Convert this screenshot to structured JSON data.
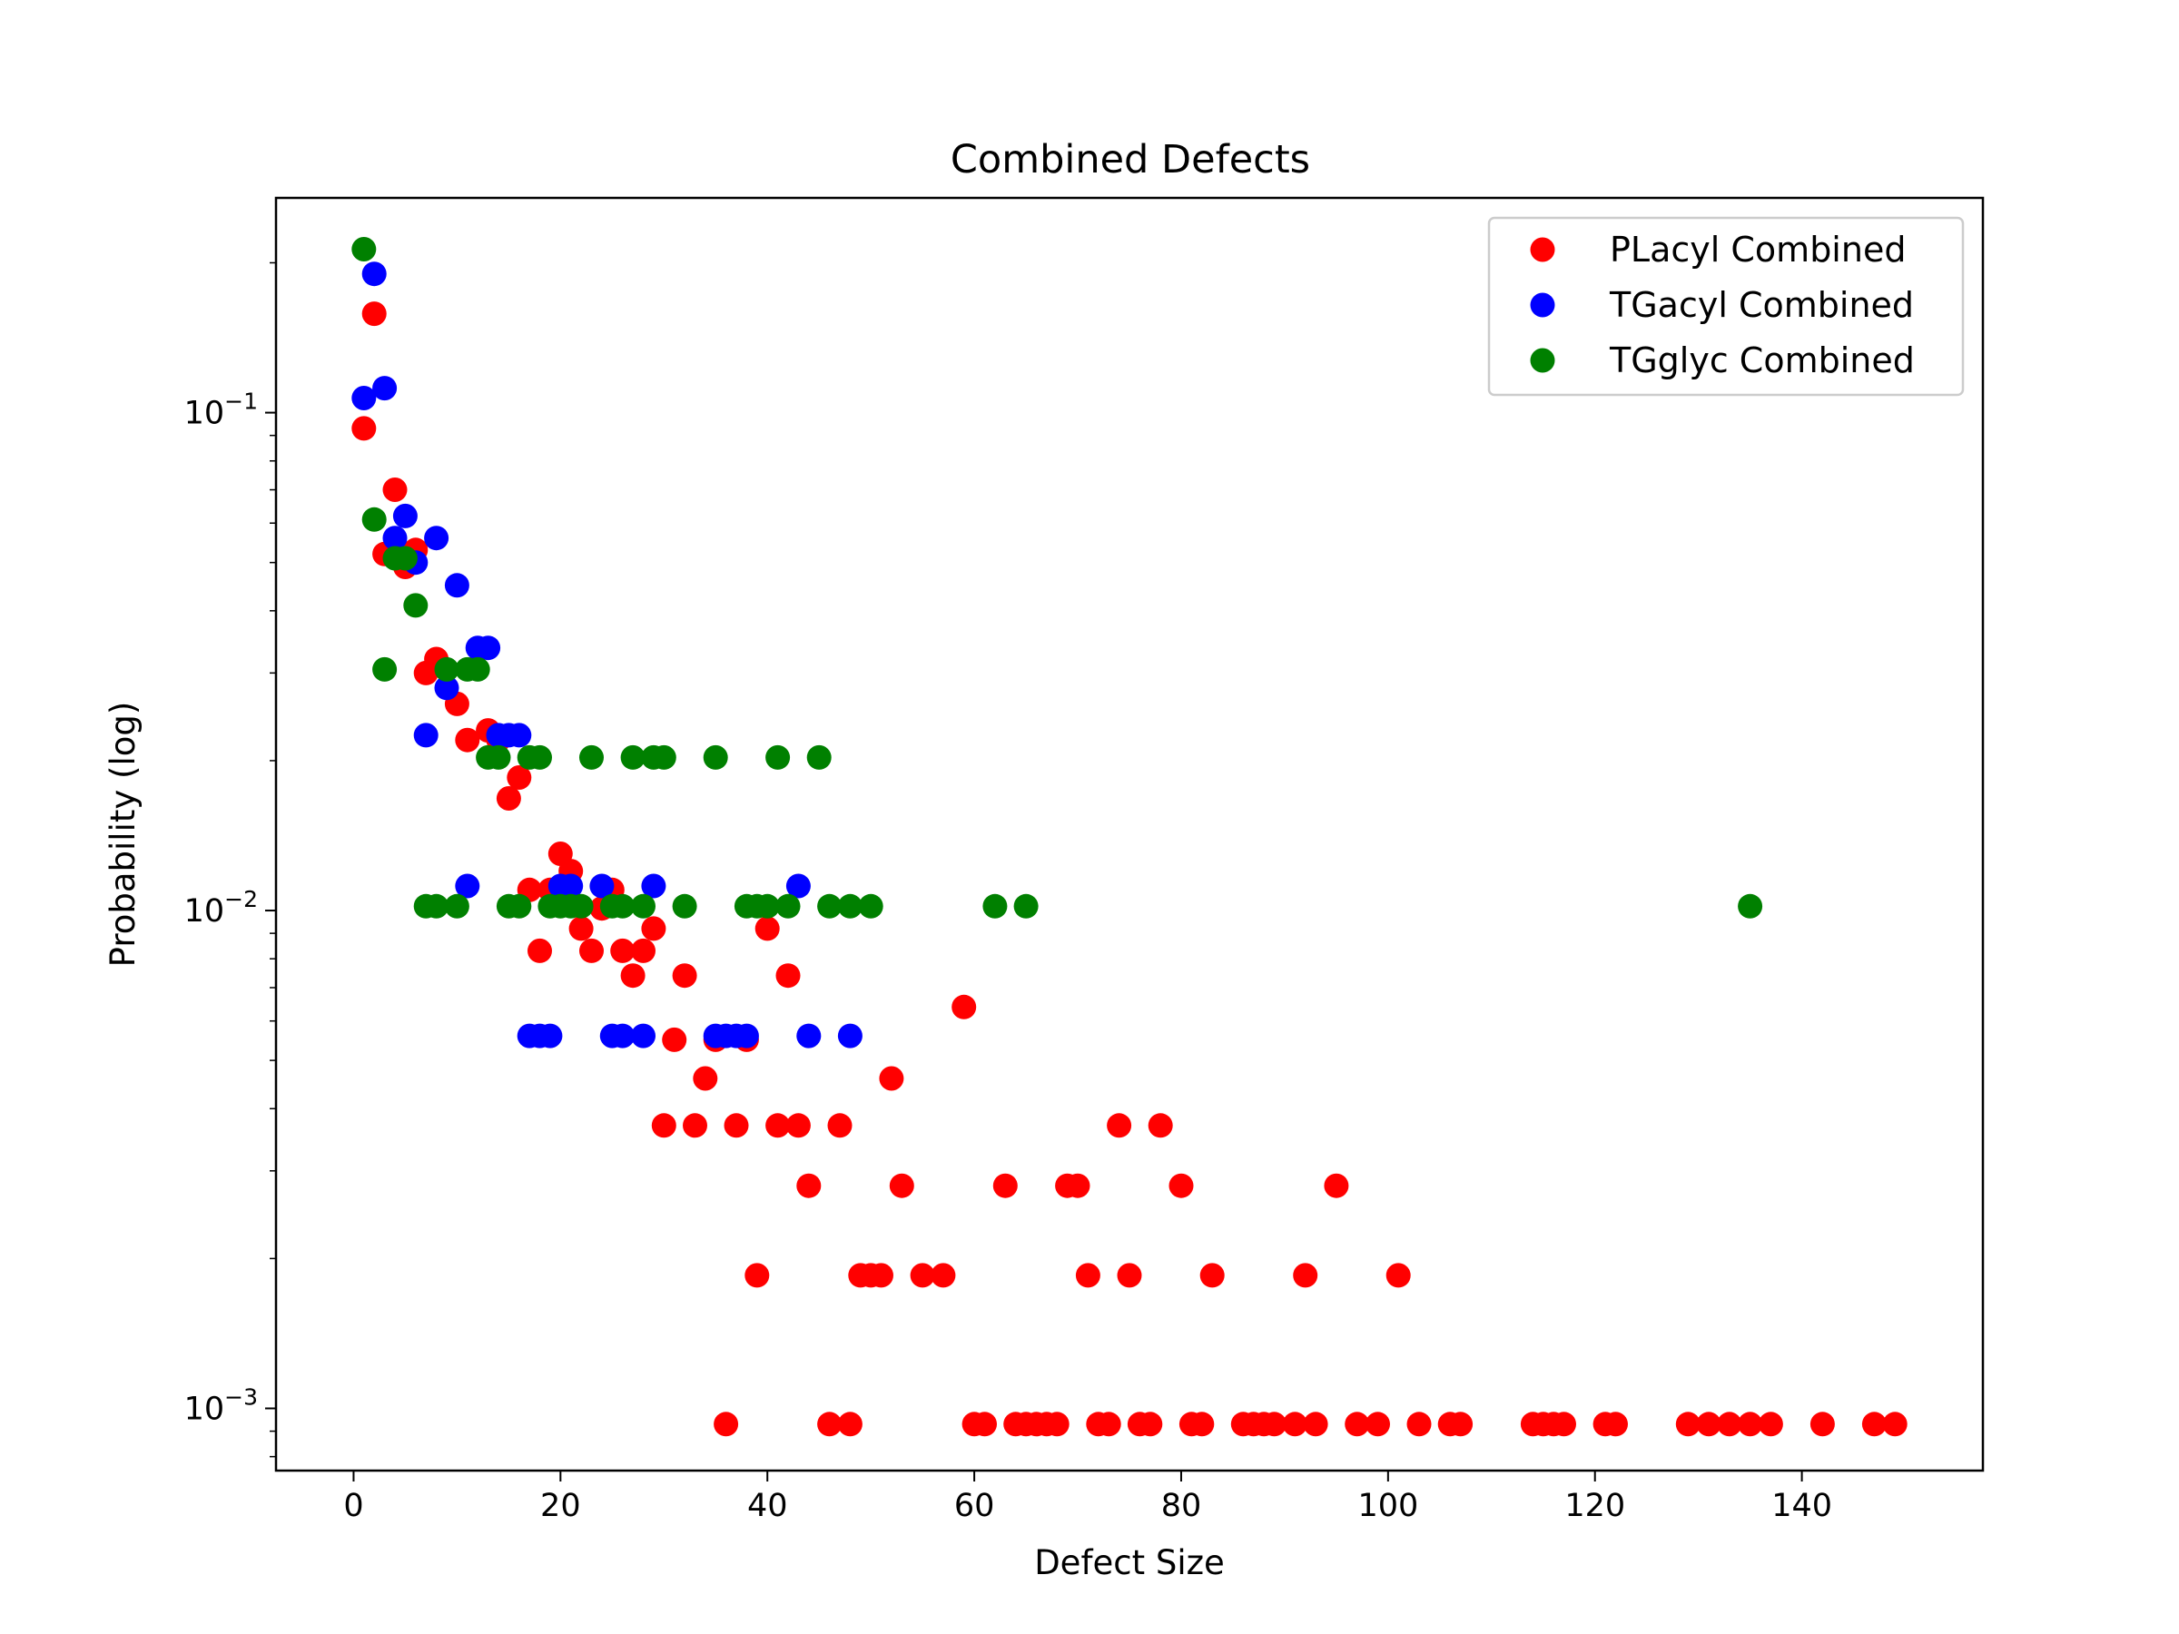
{
  "chart_data": {
    "type": "scatter",
    "title": "Combined Defects",
    "xlabel": "Defect Size",
    "ylabel": "Probability (log)",
    "xlim": [
      -7.5,
      157.5
    ],
    "ylim": [
      0.00075,
      0.27
    ],
    "yscale": "log",
    "xticks": [
      0,
      20,
      40,
      60,
      80,
      100,
      120,
      140
    ],
    "xtick_labels": [
      "0",
      "20",
      "40",
      "60",
      "80",
      "100",
      "120",
      "140"
    ],
    "yticks": [
      0.001,
      0.01,
      0.1
    ],
    "ytick_labels": [
      {
        "base": "10",
        "exp": "−3"
      },
      {
        "base": "10",
        "exp": "−2"
      },
      {
        "base": "10",
        "exp": "−1"
      }
    ],
    "grid": false,
    "legend_position": "top-right",
    "series": [
      {
        "name": "PLacyl Combined",
        "color": "#ff0000",
        "points": [
          [
            1,
            0.093
          ],
          [
            2,
            0.158
          ],
          [
            3,
            0.052
          ],
          [
            4,
            0.07
          ],
          [
            5,
            0.049
          ],
          [
            6,
            0.053
          ],
          [
            7,
            0.03
          ],
          [
            8,
            0.032
          ],
          [
            10,
            0.026
          ],
          [
            11,
            0.022
          ],
          [
            13,
            0.023
          ],
          [
            14,
            0.022
          ],
          [
            15,
            0.0168
          ],
          [
            16,
            0.0185
          ],
          [
            17,
            0.011
          ],
          [
            18,
            0.0083
          ],
          [
            19,
            0.011
          ],
          [
            20,
            0.013
          ],
          [
            21,
            0.012
          ],
          [
            22,
            0.0092
          ],
          [
            23,
            0.0083
          ],
          [
            24,
            0.0101
          ],
          [
            25,
            0.011
          ],
          [
            26,
            0.0083
          ],
          [
            27,
            0.0074
          ],
          [
            28,
            0.0083
          ],
          [
            29,
            0.0092
          ],
          [
            30,
            0.0037
          ],
          [
            31,
            0.0055
          ],
          [
            32,
            0.0074
          ],
          [
            33,
            0.0037
          ],
          [
            34,
            0.0046
          ],
          [
            35,
            0.0055
          ],
          [
            36,
            0.00093
          ],
          [
            37,
            0.0037
          ],
          [
            38,
            0.0055
          ],
          [
            39,
            0.00185
          ],
          [
            40,
            0.0092
          ],
          [
            41,
            0.0037
          ],
          [
            42,
            0.0074
          ],
          [
            43,
            0.0037
          ],
          [
            44,
            0.0028
          ],
          [
            46,
            0.00093
          ],
          [
            47,
            0.0037
          ],
          [
            48,
            0.00093
          ],
          [
            49,
            0.00185
          ],
          [
            50,
            0.00185
          ],
          [
            51,
            0.00185
          ],
          [
            52,
            0.0046
          ],
          [
            53,
            0.0028
          ],
          [
            55,
            0.00185
          ],
          [
            57,
            0.00185
          ],
          [
            59,
            0.0064
          ],
          [
            60,
            0.00093
          ],
          [
            61,
            0.00093
          ],
          [
            63,
            0.0028
          ],
          [
            64,
            0.00093
          ],
          [
            65,
            0.00093
          ],
          [
            66,
            0.00093
          ],
          [
            67,
            0.00093
          ],
          [
            68,
            0.00093
          ],
          [
            69,
            0.0028
          ],
          [
            70,
            0.0028
          ],
          [
            71,
            0.00185
          ],
          [
            72,
            0.00093
          ],
          [
            73,
            0.00093
          ],
          [
            74,
            0.0037
          ],
          [
            75,
            0.00185
          ],
          [
            76,
            0.00093
          ],
          [
            77,
            0.00093
          ],
          [
            78,
            0.0037
          ],
          [
            80,
            0.0028
          ],
          [
            81,
            0.00093
          ],
          [
            82,
            0.00093
          ],
          [
            83,
            0.00185
          ],
          [
            86,
            0.00093
          ],
          [
            87,
            0.00093
          ],
          [
            88,
            0.00093
          ],
          [
            89,
            0.00093
          ],
          [
            91,
            0.00093
          ],
          [
            92,
            0.00185
          ],
          [
            93,
            0.00093
          ],
          [
            95,
            0.0028
          ],
          [
            97,
            0.00093
          ],
          [
            99,
            0.00093
          ],
          [
            101,
            0.00185
          ],
          [
            103,
            0.00093
          ],
          [
            106,
            0.00093
          ],
          [
            107,
            0.00093
          ],
          [
            114,
            0.00093
          ],
          [
            115,
            0.00093
          ],
          [
            116,
            0.00093
          ],
          [
            117,
            0.00093
          ],
          [
            121,
            0.00093
          ],
          [
            122,
            0.00093
          ],
          [
            129,
            0.00093
          ],
          [
            131,
            0.00093
          ],
          [
            133,
            0.00093
          ],
          [
            135,
            0.00093
          ],
          [
            137,
            0.00093
          ],
          [
            142,
            0.00093
          ],
          [
            147,
            0.00093
          ],
          [
            149,
            0.00093
          ]
        ]
      },
      {
        "name": "TGacyl Combined",
        "color": "#0000ff",
        "points": [
          [
            1,
            0.107
          ],
          [
            2,
            0.19
          ],
          [
            3,
            0.112
          ],
          [
            4,
            0.056
          ],
          [
            5,
            0.062
          ],
          [
            6,
            0.05
          ],
          [
            7,
            0.0225
          ],
          [
            8,
            0.056
          ],
          [
            9,
            0.028
          ],
          [
            10,
            0.045
          ],
          [
            11,
            0.0112
          ],
          [
            12,
            0.0337
          ],
          [
            13,
            0.0337
          ],
          [
            14,
            0.0225
          ],
          [
            15,
            0.0225
          ],
          [
            16,
            0.0225
          ],
          [
            17,
            0.0056
          ],
          [
            18,
            0.0056
          ],
          [
            19,
            0.0056
          ],
          [
            20,
            0.0112
          ],
          [
            21,
            0.0112
          ],
          [
            24,
            0.0112
          ],
          [
            25,
            0.0056
          ],
          [
            26,
            0.0056
          ],
          [
            28,
            0.0056
          ],
          [
            29,
            0.0112
          ],
          [
            35,
            0.0056
          ],
          [
            36,
            0.0056
          ],
          [
            37,
            0.0056
          ],
          [
            38,
            0.0056
          ],
          [
            43,
            0.0112
          ],
          [
            44,
            0.0056
          ],
          [
            48,
            0.0056
          ]
        ]
      },
      {
        "name": "TGglyc Combined",
        "color": "#008000",
        "points": [
          [
            1,
            0.213
          ],
          [
            2,
            0.061
          ],
          [
            3,
            0.0305
          ],
          [
            4,
            0.051
          ],
          [
            5,
            0.051
          ],
          [
            6,
            0.041
          ],
          [
            7,
            0.0102
          ],
          [
            8,
            0.0102
          ],
          [
            9,
            0.0305
          ],
          [
            10,
            0.0102
          ],
          [
            11,
            0.0305
          ],
          [
            12,
            0.0305
          ],
          [
            13,
            0.0203
          ],
          [
            14,
            0.0203
          ],
          [
            15,
            0.0102
          ],
          [
            16,
            0.0102
          ],
          [
            17,
            0.0203
          ],
          [
            18,
            0.0203
          ],
          [
            19,
            0.0102
          ],
          [
            20,
            0.0102
          ],
          [
            21,
            0.0102
          ],
          [
            22,
            0.0102
          ],
          [
            23,
            0.0203
          ],
          [
            25,
            0.0102
          ],
          [
            26,
            0.0102
          ],
          [
            27,
            0.0203
          ],
          [
            28,
            0.0102
          ],
          [
            29,
            0.0203
          ],
          [
            30,
            0.0203
          ],
          [
            32,
            0.0102
          ],
          [
            35,
            0.0203
          ],
          [
            38,
            0.0102
          ],
          [
            39,
            0.0102
          ],
          [
            40,
            0.0102
          ],
          [
            41,
            0.0203
          ],
          [
            42,
            0.0102
          ],
          [
            45,
            0.0203
          ],
          [
            46,
            0.0102
          ],
          [
            48,
            0.0102
          ],
          [
            50,
            0.0102
          ],
          [
            62,
            0.0102
          ],
          [
            65,
            0.0102
          ],
          [
            135,
            0.0102
          ]
        ]
      }
    ]
  }
}
